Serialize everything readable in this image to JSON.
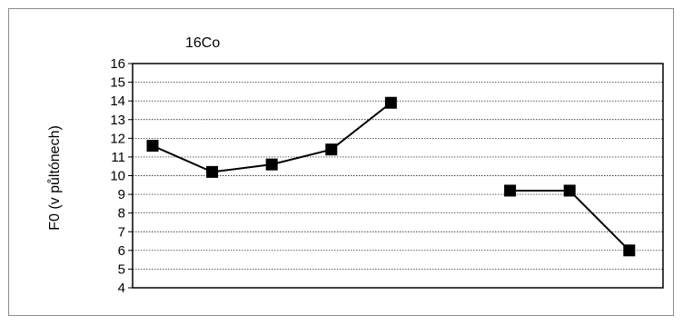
{
  "chart_data": {
    "type": "line",
    "title": "16Co",
    "xlabel": "",
    "ylabel": "F0 (v půltónech)",
    "ylim": [
      4,
      16
    ],
    "yticks": [
      "4",
      "5",
      "6",
      "7",
      "8",
      "9",
      "10",
      "11",
      "12",
      "13",
      "14",
      "15",
      "16"
    ],
    "grid": true,
    "legend": "none",
    "x": [
      1,
      2,
      3,
      4,
      5,
      6,
      7,
      8,
      9
    ],
    "series": [
      {
        "values": [
          11.6,
          10.2,
          10.6,
          11.4,
          13.9,
          null,
          9.2,
          9.2,
          6.0
        ],
        "color": "#000000",
        "marker": "square"
      }
    ]
  }
}
